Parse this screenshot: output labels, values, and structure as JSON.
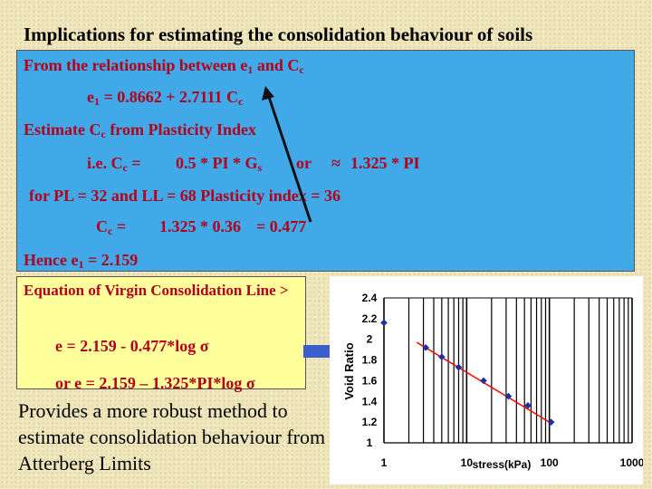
{
  "title": "Implications for estimating the consolidation behaviour of soils",
  "blue_box": {
    "line1": "From the relationship between e",
    "line1_sub": "1",
    "line1_end": " and C",
    "line1_end_sub": "c",
    "eq1_a": "e",
    "eq1_sub1": "1",
    "eq1_b": " = 0.8662 + 2.7111 C",
    "eq1_sub2": "c",
    "line3_a": "Estimate C",
    "line3_sub": "c",
    "line3_b": " from Plasticity Index",
    "line4_a": "i.e. C",
    "line4_sub": "c",
    "line4_b": " =",
    "line4_c": "0.5 * PI  * G",
    "line4_sub2": "s",
    "line4_or": "or",
    "line4_approx": "≈",
    "line4_d": "1.325 * PI",
    "line5": "for PL = 32 and LL = 68   Plasticity index = 36",
    "line6_a": "C",
    "line6_sub": "c",
    "line6_b": " =",
    "line6_c": "1.325 * 0.36",
    "line6_d": "= 0.477",
    "line7_a": "Hence e",
    "line7_sub": "1",
    "line7_b": "  =  2.159"
  },
  "yellow_box": {
    "heading": "Equation of Virgin Consolidation Line >",
    "eq_a": "e = 2.159 - 0.477*log ",
    "eq_sigma": "σ",
    "eq2_a": "or e = 2.159 – 1.325*PI*log ",
    "eq2_sigma": "σ"
  },
  "bottom_text": "Provides a more robust method to estimate consolidation behaviour from Atterberg Limits",
  "colors": {
    "background": "#efe6bc",
    "blue_box": "#42a9e8",
    "red_text": "#b2001a",
    "yellow_box": "#ffff9c",
    "arrow_blue": "#3a5fcd",
    "line_red": "#ff0000",
    "marker": "#1f2f9f"
  },
  "chart_data": {
    "type": "scatter",
    "xscale": "log",
    "xlabel": "stress(kPa)",
    "ylabel": "Void Ratio",
    "xlim": [
      1,
      1000
    ],
    "ylim": [
      1,
      2.4
    ],
    "x_ticks": [
      "1",
      "10",
      "100",
      "1000"
    ],
    "y_ticks": [
      "2.4",
      "2.2",
      "2",
      "1.8",
      "1.6",
      "1.4",
      "1.2",
      "1"
    ],
    "series": [
      {
        "points": [
          {
            "x": 1,
            "y": 2.16
          },
          {
            "x": 3.2,
            "y": 1.92
          },
          {
            "x": 5,
            "y": 1.83
          },
          {
            "x": 8,
            "y": 1.73
          },
          {
            "x": 16,
            "y": 1.6
          },
          {
            "x": 32,
            "y": 1.45
          },
          {
            "x": 55,
            "y": 1.36
          },
          {
            "x": 105,
            "y": 1.2
          }
        ]
      }
    ],
    "trend_line": {
      "x": [
        2.5,
        100
      ],
      "y": [
        1.97,
        1.2
      ]
    },
    "grid": true
  }
}
